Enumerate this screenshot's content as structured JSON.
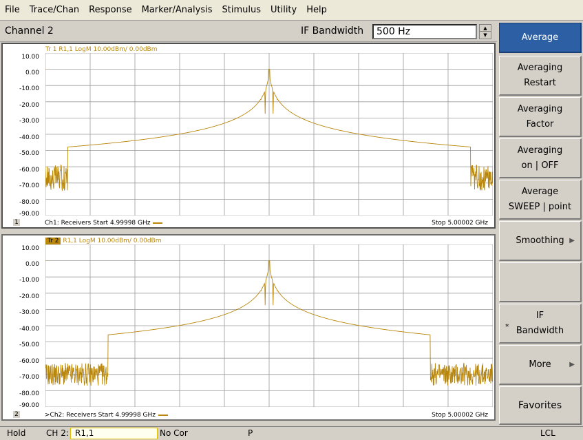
{
  "menubar": [
    "File",
    "Trace/Chan",
    "Response",
    "Marker/Analysis",
    "Stimulus",
    "Utility",
    "Help"
  ],
  "topbar": {
    "channel": "Channel 2",
    "ifbw_label": "IF Bandwidth",
    "ifbw_value": "500 Hz",
    "spin_up": "▲",
    "spin_down": "▼"
  },
  "y_ticks": [
    "10.00",
    "0.00",
    "-10.00",
    "-20.00",
    "-30.00",
    "-40.00",
    "-50.00",
    "-60.00",
    "-70.00",
    "-80.00",
    "-90.00"
  ],
  "panel1": {
    "trace_label": "Tr 1",
    "trace_info": "R1,1 LogM 10.00dBm/ 0.00dBm",
    "channel_index": "1",
    "start": "Ch1: Receivers Start 4.99998 GHz",
    "stop": "Stop 5.00002 GHz"
  },
  "panel2": {
    "trace_label": "Tr 2",
    "trace_info": "R1,1 LogM 10.00dBm/ 0.00dBm",
    "channel_index": "2",
    "start": ">Ch2: Receivers Start 4.99998 GHz",
    "stop": "Stop 5.00002 GHz"
  },
  "softkeys": {
    "average": "Average",
    "averaging_restart": [
      "Averaging",
      "Restart"
    ],
    "averaging_factor": [
      "Averaging",
      "Factor"
    ],
    "averaging_onoff": [
      "Averaging",
      "on | OFF"
    ],
    "average_sweep": [
      "Average",
      "SWEEP | point"
    ],
    "smoothing": "Smoothing",
    "if_bandwidth": [
      "IF",
      "Bandwidth"
    ],
    "if_star": "*",
    "more": "More",
    "favorites": "Favorites",
    "arrow": "▶"
  },
  "status": {
    "hold": "Hold",
    "channel": "CH 2:",
    "param": "R1,1",
    "cor": "No Cor",
    "p": "P",
    "lcl": "LCL"
  },
  "colors": {
    "trace": "#b8860b",
    "active_key": "#2d5fa4"
  },
  "chart_data": [
    {
      "type": "line",
      "ylim": [
        -90,
        10
      ],
      "x_range_ghz": [
        4.99998,
        5.00002
      ],
      "series": [
        {
          "peak_db": 0,
          "sidelobe_floor_db": -55,
          "noise_floor_db": -70
        }
      ]
    },
    {
      "type": "line",
      "ylim": [
        -90,
        10
      ],
      "x_range_ghz": [
        4.99998,
        5.00002
      ],
      "series": [
        {
          "peak_db": 0,
          "sidelobe_floor_db": -50,
          "noise_floor_db": -70
        }
      ]
    }
  ]
}
